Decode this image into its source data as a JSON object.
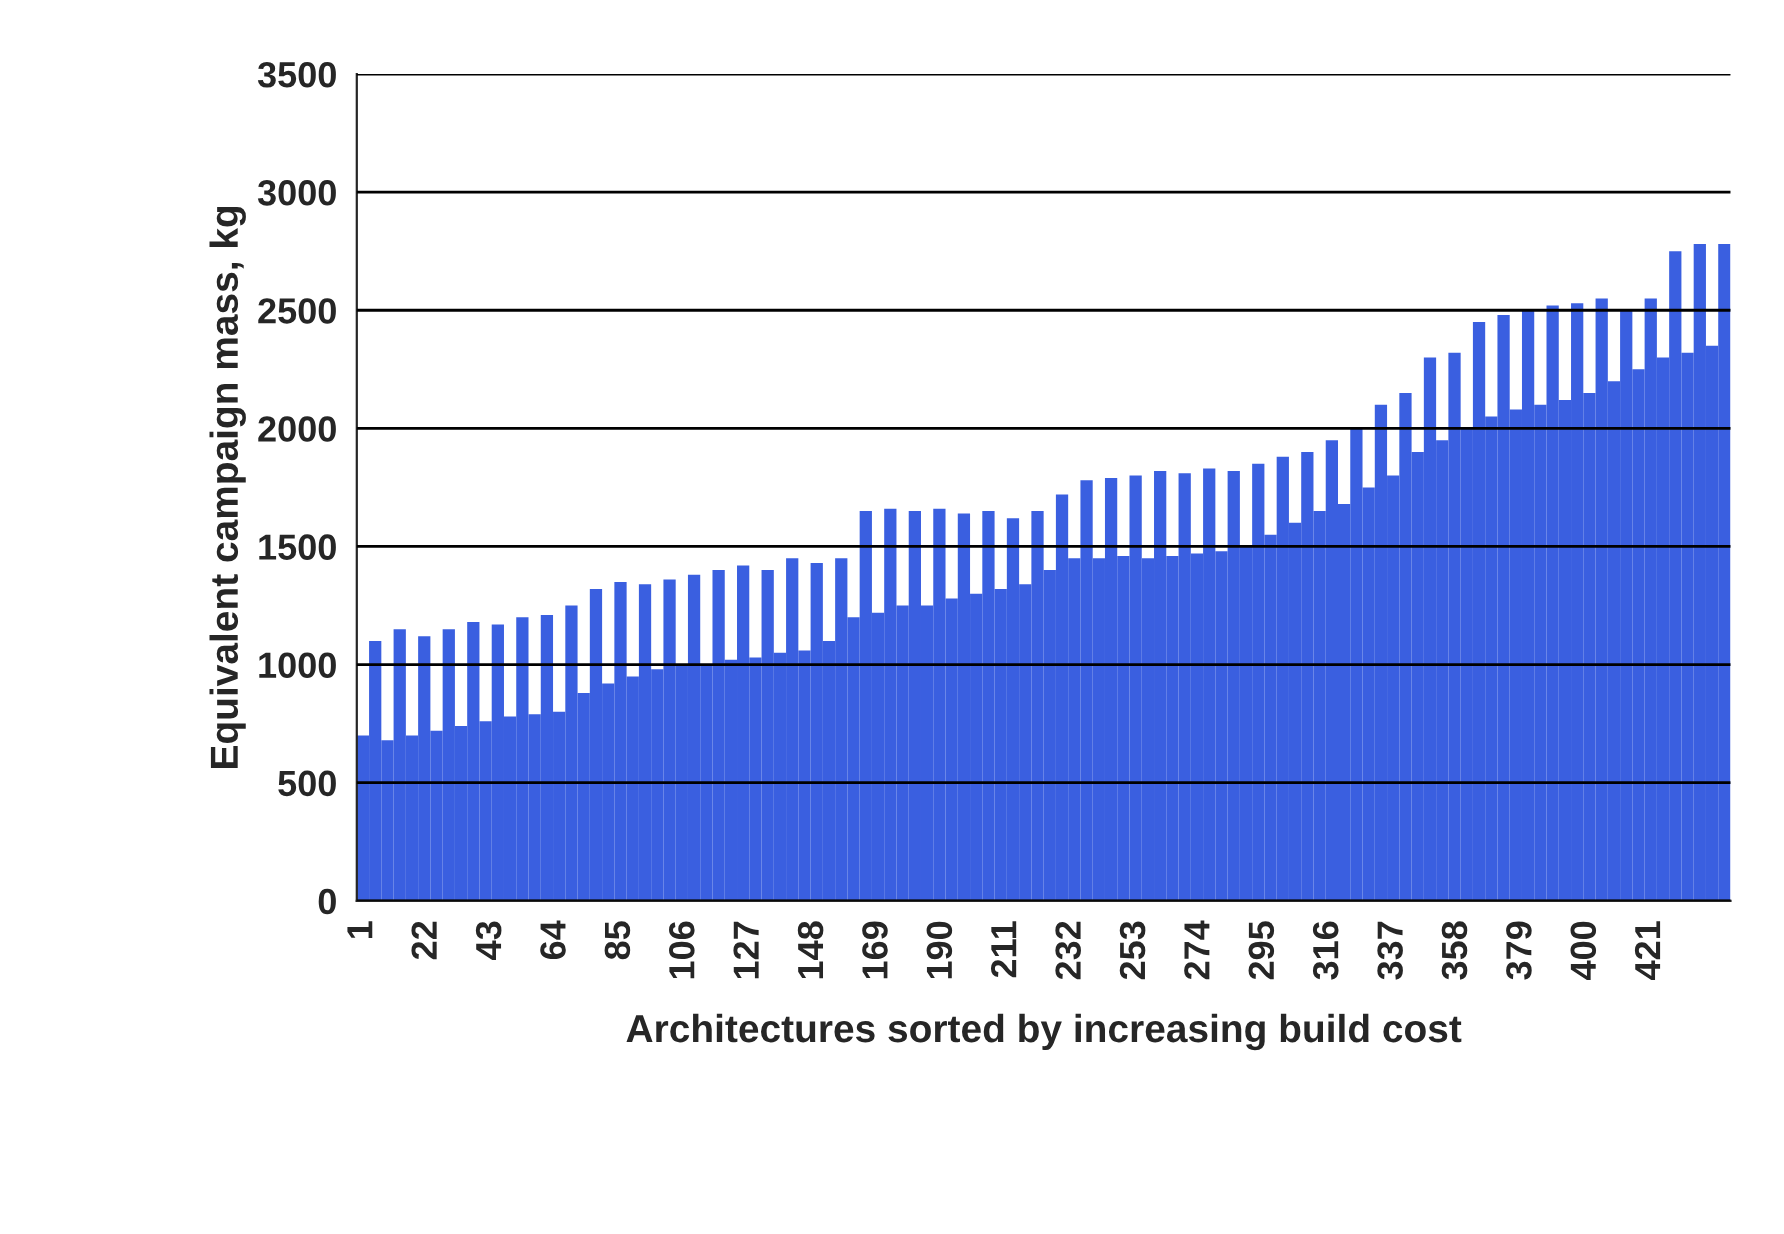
{
  "chart_data": {
    "type": "bar",
    "xlabel": "Architectures sorted by increasing build cost",
    "ylabel": "Equivalent campaign mass, kg",
    "x": [
      1,
      5,
      9,
      13,
      17,
      21,
      25,
      29,
      33,
      37,
      41,
      45,
      49,
      53,
      57,
      61,
      65,
      69,
      73,
      77,
      81,
      85,
      89,
      93,
      97,
      101,
      105,
      109,
      113,
      117,
      121,
      125,
      129,
      133,
      137,
      141,
      145,
      149,
      153,
      157,
      161,
      165,
      169,
      173,
      177,
      181,
      185,
      189,
      193,
      197,
      201,
      205,
      209,
      213,
      217,
      221,
      225,
      229,
      233,
      237,
      241,
      245,
      249,
      253,
      257,
      261,
      265,
      269,
      273,
      277,
      281,
      285,
      289,
      293,
      297,
      301,
      305,
      309,
      313,
      317,
      321,
      325,
      329,
      333,
      337,
      341,
      345,
      349,
      353,
      357,
      361,
      365,
      369,
      373,
      377,
      381,
      385,
      389,
      393,
      397,
      401,
      405,
      409,
      413,
      417,
      421,
      425,
      429,
      433,
      437,
      441,
      445
    ],
    "values": [
      700,
      1100,
      680,
      1150,
      700,
      1120,
      720,
      1150,
      740,
      1180,
      760,
      1170,
      780,
      1200,
      790,
      1210,
      800,
      1250,
      880,
      1320,
      920,
      1350,
      950,
      1340,
      980,
      1360,
      1000,
      1380,
      1000,
      1400,
      1020,
      1420,
      1030,
      1400,
      1050,
      1450,
      1060,
      1430,
      1100,
      1450,
      1200,
      1650,
      1220,
      1660,
      1250,
      1650,
      1250,
      1660,
      1280,
      1640,
      1300,
      1650,
      1320,
      1620,
      1340,
      1650,
      1400,
      1720,
      1450,
      1780,
      1450,
      1790,
      1460,
      1800,
      1450,
      1820,
      1460,
      1810,
      1470,
      1830,
      1480,
      1820,
      1500,
      1850,
      1550,
      1880,
      1600,
      1900,
      1650,
      1950,
      1680,
      2000,
      1750,
      2100,
      1800,
      2150,
      1900,
      2300,
      1950,
      2320,
      2000,
      2450,
      2050,
      2480,
      2080,
      2500,
      2100,
      2520,
      2120,
      2530,
      2150,
      2550,
      2200,
      2500,
      2250,
      2550,
      2300,
      2750,
      2320,
      2780,
      2350,
      2780
    ],
    "color": "#3a5fe0",
    "xlim": [
      -1,
      447
    ],
    "xticks": [
      1,
      22,
      43,
      64,
      85,
      106,
      127,
      148,
      169,
      190,
      211,
      232,
      253,
      274,
      295,
      316,
      337,
      358,
      379,
      400,
      421
    ],
    "ylim": [
      0,
      3500
    ],
    "yticks": [
      0,
      500,
      1000,
      1500,
      2000,
      2500,
      3000,
      3500
    ],
    "grid": "y"
  }
}
